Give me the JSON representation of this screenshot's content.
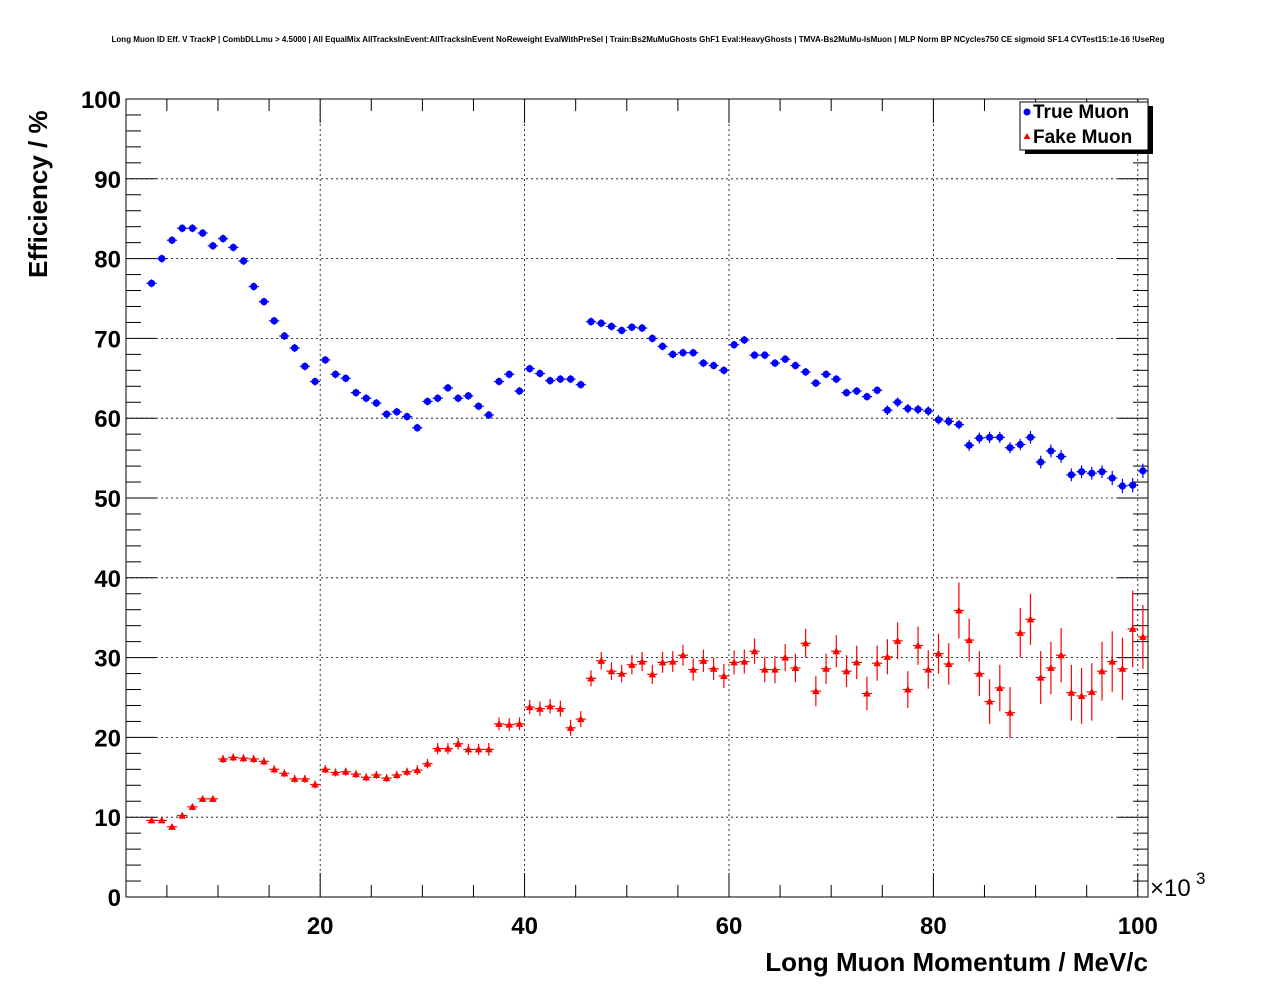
{
  "chart_data": {
    "type": "scatter",
    "title": "Long Muon ID Eff. V TrackP | CombDLLmu > 4.5000 | All EqualMix AllTracksInEvent:AllTracksInEvent NoReweight EvalWithPreSel | Train:Bs2MuMuGhosts GhF1 Eval:HeavyGhosts | TMVA-Bs2MuMu-IsMuon | MLP Norm BP NCycles750 CE sigmoid SF1.4 CVTest15:1e-16 !UseReg",
    "xlabel": "Long Muon Momentum / MeV/c",
    "ylabel": "Efficiency / %",
    "x_scale_label": "×10",
    "x_scale_exponent": "3",
    "xlim": [
      1000,
      101000
    ],
    "ylim": [
      0,
      100
    ],
    "x_ticks": [
      20,
      40,
      60,
      80,
      100
    ],
    "y_ticks": [
      0,
      10,
      20,
      30,
      40,
      50,
      60,
      70,
      80,
      90,
      100
    ],
    "grid": true,
    "legend_position": "top-right",
    "series": [
      {
        "name": "True Muon",
        "color": "#0000ff",
        "marker": "circle",
        "x": [
          3.5,
          4.5,
          5.5,
          6.5,
          7.5,
          8.5,
          9.5,
          10.5,
          11.5,
          12.5,
          13.5,
          14.5,
          15.5,
          16.5,
          17.5,
          18.5,
          19.5,
          20.5,
          21.5,
          22.5,
          23.5,
          24.5,
          25.5,
          26.5,
          27.5,
          28.5,
          29.5,
          30.5,
          31.5,
          32.5,
          33.5,
          34.5,
          35.5,
          36.5,
          37.5,
          38.5,
          39.5,
          40.5,
          41.5,
          42.5,
          43.5,
          44.5,
          45.5,
          46.5,
          47.5,
          48.5,
          49.5,
          50.5,
          51.5,
          52.5,
          53.5,
          54.5,
          55.5,
          56.5,
          57.5,
          58.5,
          59.5,
          60.5,
          61.5,
          62.5,
          63.5,
          64.5,
          65.5,
          66.5,
          67.5,
          68.5,
          69.5,
          70.5,
          71.5,
          72.5,
          73.5,
          74.5,
          75.5,
          76.5,
          77.5,
          78.5,
          79.5,
          80.5,
          81.5,
          82.5,
          83.5,
          84.5,
          85.5,
          86.5,
          87.5,
          88.5,
          89.5,
          90.5,
          91.5,
          92.5,
          93.5,
          94.5,
          95.5,
          96.5,
          97.5,
          98.5,
          99.5,
          100.5
        ],
        "y": [
          76.9,
          80.0,
          82.3,
          83.8,
          83.8,
          83.2,
          81.6,
          82.5,
          81.4,
          79.7,
          76.5,
          74.6,
          72.2,
          70.3,
          68.8,
          66.5,
          64.6,
          67.3,
          65.5,
          65.0,
          63.2,
          62.5,
          61.9,
          60.5,
          60.8,
          60.2,
          58.8,
          62.1,
          62.5,
          63.8,
          62.5,
          62.8,
          61.5,
          60.4,
          64.6,
          65.5,
          63.4,
          66.2,
          65.6,
          64.7,
          64.9,
          64.9,
          64.2,
          72.1,
          71.9,
          71.5,
          71.0,
          71.4,
          71.3,
          70.0,
          69.0,
          68.0,
          68.2,
          68.2,
          66.9,
          66.6,
          66.0,
          69.2,
          69.8,
          67.9,
          67.9,
          66.9,
          67.4,
          66.6,
          65.8,
          64.4,
          65.5,
          64.9,
          63.2,
          63.4,
          62.7,
          63.5,
          61.0,
          62.0,
          61.2,
          61.1,
          60.9,
          59.8,
          59.6,
          59.2,
          56.6,
          57.5,
          57.6,
          57.6,
          56.3,
          56.7,
          57.6,
          54.5,
          55.9,
          55.2,
          52.9,
          53.3,
          53.1,
          53.3,
          52.5,
          51.5,
          51.6,
          53.4
        ],
        "yerr": [
          0.5,
          0.5,
          0.5,
          0.5,
          0.5,
          0.5,
          0.5,
          0.5,
          0.5,
          0.5,
          0.5,
          0.5,
          0.5,
          0.5,
          0.5,
          0.5,
          0.5,
          0.5,
          0.5,
          0.5,
          0.5,
          0.5,
          0.5,
          0.5,
          0.5,
          0.5,
          0.5,
          0.5,
          0.5,
          0.5,
          0.5,
          0.5,
          0.5,
          0.5,
          0.5,
          0.5,
          0.5,
          0.5,
          0.5,
          0.5,
          0.5,
          0.5,
          0.5,
          0.5,
          0.5,
          0.5,
          0.5,
          0.5,
          0.5,
          0.5,
          0.5,
          0.5,
          0.5,
          0.5,
          0.5,
          0.5,
          0.5,
          0.5,
          0.5,
          0.5,
          0.5,
          0.5,
          0.5,
          0.5,
          0.5,
          0.5,
          0.5,
          0.5,
          0.5,
          0.5,
          0.5,
          0.5,
          0.6,
          0.6,
          0.6,
          0.6,
          0.6,
          0.6,
          0.6,
          0.6,
          0.7,
          0.7,
          0.7,
          0.7,
          0.7,
          0.7,
          0.8,
          0.8,
          0.8,
          0.8,
          0.8,
          0.8,
          0.8,
          0.8,
          0.9,
          0.9,
          0.9,
          0.9
        ]
      },
      {
        "name": "Fake Muon",
        "color": "#ff0000",
        "marker": "triangle",
        "x": [
          3.5,
          4.5,
          5.5,
          6.5,
          7.5,
          8.5,
          9.5,
          10.5,
          11.5,
          12.5,
          13.5,
          14.5,
          15.5,
          16.5,
          17.5,
          18.5,
          19.5,
          20.5,
          21.5,
          22.5,
          23.5,
          24.5,
          25.5,
          26.5,
          27.5,
          28.5,
          29.5,
          30.5,
          31.5,
          32.5,
          33.5,
          34.5,
          35.5,
          36.5,
          37.5,
          38.5,
          39.5,
          40.5,
          41.5,
          42.5,
          43.5,
          44.5,
          45.5,
          46.5,
          47.5,
          48.5,
          49.5,
          50.5,
          51.5,
          52.5,
          53.5,
          54.5,
          55.5,
          56.5,
          57.5,
          58.5,
          59.5,
          60.5,
          61.5,
          62.5,
          63.5,
          64.5,
          65.5,
          66.5,
          67.5,
          68.5,
          69.5,
          70.5,
          71.5,
          72.5,
          73.5,
          74.5,
          75.5,
          76.5,
          77.5,
          78.5,
          79.5,
          80.5,
          81.5,
          82.5,
          83.5,
          84.5,
          85.5,
          86.5,
          87.5,
          88.5,
          89.5,
          90.5,
          91.5,
          92.5,
          93.5,
          94.5,
          95.5,
          96.5,
          97.5,
          98.5,
          99.5,
          100.5
        ],
        "y": [
          9.6,
          9.6,
          8.8,
          10.2,
          11.3,
          12.3,
          12.3,
          17.3,
          17.5,
          17.4,
          17.3,
          17.0,
          16.0,
          15.5,
          14.8,
          14.8,
          14.1,
          16.0,
          15.6,
          15.7,
          15.4,
          15.0,
          15.3,
          14.9,
          15.3,
          15.7,
          15.9,
          16.7,
          18.6,
          18.6,
          19.2,
          18.5,
          18.5,
          18.5,
          21.7,
          21.6,
          21.7,
          23.8,
          23.6,
          23.9,
          23.6,
          21.2,
          22.3,
          27.4,
          29.6,
          28.3,
          28.0,
          29.1,
          29.5,
          27.9,
          29.4,
          29.5,
          30.3,
          28.5,
          29.6,
          28.6,
          27.7,
          29.4,
          29.5,
          30.8,
          28.5,
          28.5,
          30.0,
          28.7,
          31.8,
          25.8,
          28.6,
          30.8,
          28.3,
          29.4,
          25.5,
          29.3,
          30.1,
          32.1,
          26.0,
          31.5,
          28.5,
          30.5,
          29.2,
          35.9,
          32.2,
          28.0,
          24.5,
          26.2,
          23.1,
          33.1,
          34.8,
          27.5,
          28.7,
          30.3,
          25.6,
          25.2,
          25.7,
          28.3,
          29.5,
          28.6,
          33.6,
          32.6
        ],
        "yerr": [
          0.3,
          0.3,
          0.3,
          0.4,
          0.4,
          0.4,
          0.4,
          0.5,
          0.5,
          0.5,
          0.5,
          0.5,
          0.5,
          0.5,
          0.5,
          0.5,
          0.5,
          0.5,
          0.5,
          0.5,
          0.5,
          0.5,
          0.5,
          0.5,
          0.5,
          0.5,
          0.6,
          0.6,
          0.7,
          0.7,
          0.7,
          0.7,
          0.7,
          0.8,
          0.8,
          0.8,
          0.8,
          0.9,
          0.9,
          0.9,
          1.0,
          1.0,
          1.0,
          1.0,
          1.1,
          1.1,
          1.1,
          1.2,
          1.2,
          1.2,
          1.3,
          1.3,
          1.3,
          1.4,
          1.4,
          1.4,
          1.5,
          1.5,
          1.5,
          1.6,
          1.6,
          1.7,
          1.7,
          1.8,
          1.8,
          1.9,
          1.9,
          2.0,
          2.0,
          2.1,
          2.1,
          2.2,
          2.2,
          2.3,
          2.3,
          2.4,
          2.4,
          2.5,
          2.6,
          3.5,
          2.7,
          2.8,
          2.8,
          2.9,
          3.2,
          3.1,
          3.2,
          3.3,
          3.3,
          3.4,
          3.5,
          3.5,
          3.6,
          3.7,
          3.8,
          3.9,
          4.8,
          4.0
        ]
      }
    ]
  }
}
